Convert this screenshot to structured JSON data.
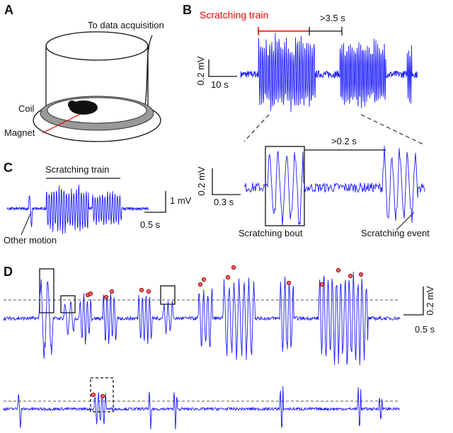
{
  "panels": {
    "a": {
      "label": "A",
      "acquisition": "To data acquisition",
      "coil": "Coil",
      "magnet": "Magnet"
    },
    "b": {
      "label": "B",
      "train": "Scratching train",
      "gap": ">3.5 s",
      "scale_v": "0.2 mV",
      "scale_t": "10 s",
      "inter_gap": ">0.2 s",
      "zoom_scale_v": "0.2 mV",
      "zoom_scale_t": "0.3 s",
      "bout": "Scratching bout",
      "event": "Scratching event"
    },
    "c": {
      "label": "C",
      "train": "Scratching train",
      "scale_v": "1 mV",
      "scale_t": "0.5 s",
      "other": "Other motion"
    },
    "d": {
      "label": "D",
      "scale_v": "0.2 mV",
      "scale_t": "0.5 s"
    }
  }
}
